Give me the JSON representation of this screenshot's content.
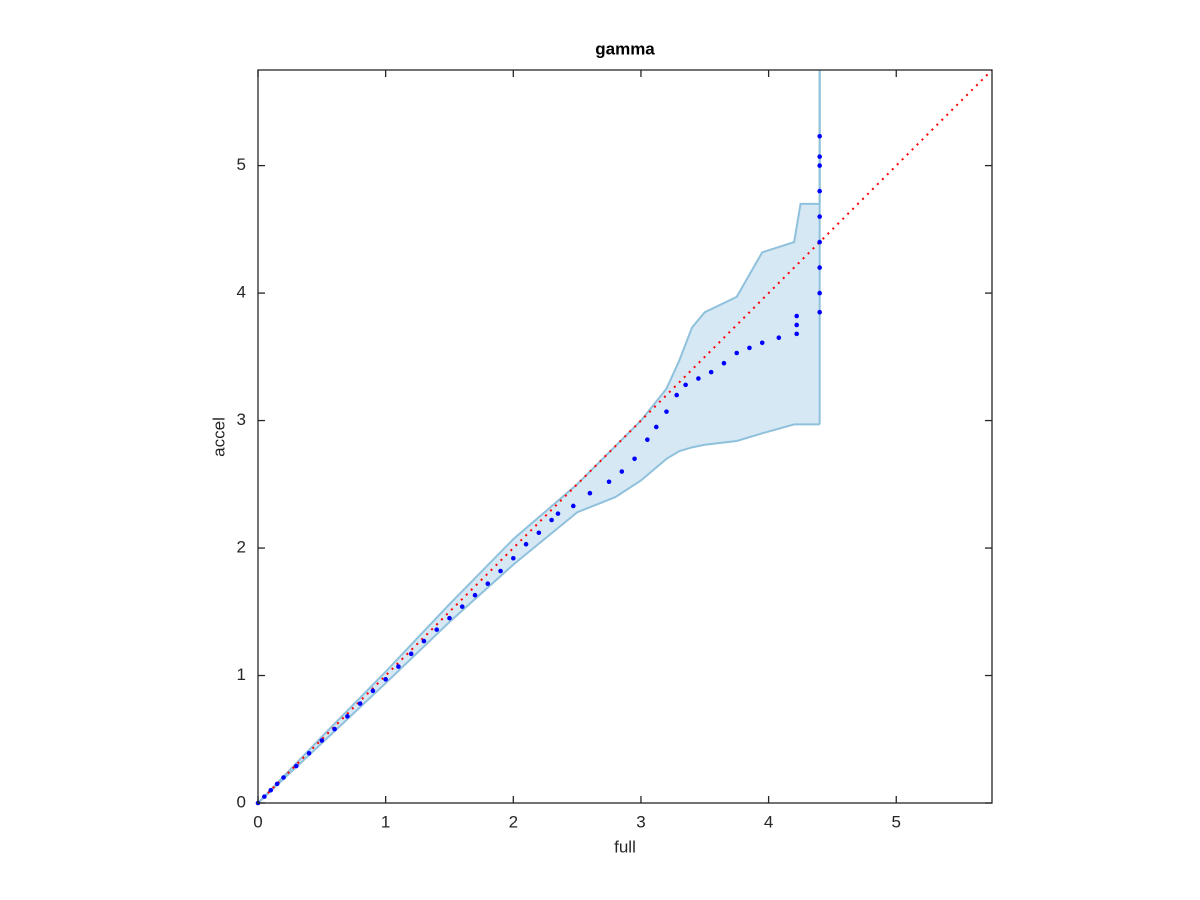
{
  "chart_data": {
    "type": "scatter",
    "title": "gamma",
    "x_label": "full",
    "y_label": "accel",
    "xlim": [
      0,
      5.75
    ],
    "ylim": [
      0,
      5.75
    ],
    "xticks": [
      0,
      1,
      2,
      3,
      4,
      5
    ],
    "yticks": [
      0,
      1,
      2,
      3,
      4,
      5
    ],
    "points": {
      "color": "#0000ff",
      "x": [
        0,
        0.05,
        0.1,
        0.15,
        0.2,
        0.3,
        0.4,
        0.5,
        0.6,
        0.7,
        0.8,
        0.9,
        1.0,
        1.1,
        1.2,
        1.3,
        1.4,
        1.5,
        1.6,
        1.7,
        1.8,
        1.9,
        2.0,
        2.1,
        2.2,
        2.3,
        2.35,
        2.47,
        2.6,
        2.75,
        2.85,
        2.95,
        3.05,
        3.12,
        3.2,
        3.28,
        3.35,
        3.45,
        3.55,
        3.65,
        3.75,
        3.85,
        3.95,
        4.08,
        4.22,
        4.22,
        4.22,
        4.4,
        4.4,
        4.4,
        4.4,
        4.4,
        4.4,
        4.4,
        4.4,
        4.4
      ],
      "y": [
        0,
        0.05,
        0.1,
        0.15,
        0.2,
        0.29,
        0.39,
        0.49,
        0.58,
        0.68,
        0.78,
        0.88,
        0.97,
        1.07,
        1.17,
        1.27,
        1.36,
        1.45,
        1.54,
        1.63,
        1.72,
        1.82,
        1.92,
        2.03,
        2.12,
        2.22,
        2.27,
        2.33,
        2.43,
        2.52,
        2.6,
        2.7,
        2.85,
        2.95,
        3.07,
        3.2,
        3.28,
        3.33,
        3.38,
        3.45,
        3.53,
        3.57,
        3.61,
        3.65,
        3.68,
        3.75,
        3.82,
        3.85,
        4.0,
        4.2,
        4.4,
        4.6,
        4.8,
        5.0,
        5.07,
        5.23
      ]
    },
    "band": {
      "color": "#d6e8f4",
      "edge_color": "#8fc1dc",
      "x": [
        0,
        0.5,
        1,
        1.5,
        2,
        2.5,
        2.8,
        3,
        3.2,
        3.3,
        3.4,
        3.5,
        3.75,
        3.95,
        4.2,
        4.25,
        4.4,
        4.4
      ],
      "upper": [
        0,
        0.52,
        1.03,
        1.56,
        2.07,
        2.5,
        2.8,
        3.0,
        3.25,
        3.47,
        3.73,
        3.85,
        3.97,
        4.32,
        4.4,
        4.7,
        4.7,
        5.75
      ],
      "lower": [
        0,
        0.47,
        0.94,
        1.42,
        1.87,
        2.28,
        2.4,
        2.53,
        2.7,
        2.76,
        2.79,
        2.81,
        2.84,
        2.9,
        2.97,
        2.97,
        2.97,
        2.97
      ]
    },
    "reference_line": {
      "color": "#ff0000",
      "x": [
        0,
        5.75
      ],
      "y": [
        0,
        5.75
      ]
    }
  }
}
